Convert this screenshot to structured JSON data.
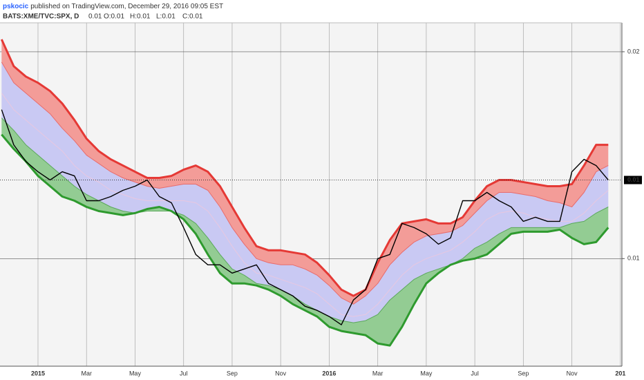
{
  "header": {
    "author": "pskocic",
    "published": "published on TradingView.com, December 29, 2016 09:05 EST",
    "symbol": "BATS:XME/TVC:SPX, D",
    "last": "0.01",
    "ohlc": [
      "O:0.01",
      "H:0.01",
      "L:0.01",
      "C:0.01"
    ]
  },
  "chart_data": {
    "type": "line",
    "categories": [
      null,
      null,
      null,
      "2015",
      null,
      null,
      null,
      "Mar",
      null,
      null,
      null,
      "May",
      null,
      null,
      null,
      "Jul",
      null,
      null,
      null,
      "Sep",
      null,
      null,
      null,
      "Nov",
      null,
      null,
      null,
      "2016",
      null,
      null,
      null,
      "Mar",
      null,
      null,
      null,
      "May",
      null,
      null,
      null,
      "Jul",
      null,
      null,
      null,
      "Sep",
      null,
      null,
      null,
      "Nov",
      null,
      null,
      null,
      "201"
    ],
    "series": [
      {
        "color": "#e53935",
        "values": [
          0.0206,
          0.0193,
          0.0188,
          0.0185,
          0.0181,
          0.0175,
          0.0167,
          0.0158,
          0.0152,
          0.0148,
          0.0145,
          0.0142,
          0.0139,
          0.0139,
          0.014,
          0.0143,
          0.0145,
          0.0142,
          0.0135,
          0.0125,
          0.0115,
          0.0106,
          0.0104,
          0.0104,
          0.0103,
          0.0102,
          0.0098,
          0.0092,
          0.0085,
          0.0082,
          0.0085,
          0.0098,
          0.0109,
          0.0117,
          0.0118,
          0.0119,
          0.0117,
          0.0117,
          0.012,
          0.0128,
          0.0135,
          0.0138,
          0.0138,
          0.0137,
          0.0136,
          0.0135,
          0.0135,
          0.0136,
          0.0145,
          0.0155,
          0.0155,
          null
        ]
      },
      {
        "color": "#e86b6b",
        "values": [
          0.0195,
          0.0185,
          0.018,
          0.0175,
          0.017,
          0.0163,
          0.0157,
          0.015,
          0.0146,
          0.0142,
          0.0139,
          0.0137,
          0.0135,
          0.0134,
          0.0135,
          0.0136,
          0.0136,
          0.0133,
          0.0125,
          0.0115,
          0.0107,
          0.01,
          0.0098,
          0.0097,
          0.0097,
          0.0095,
          0.0092,
          0.0087,
          0.0081,
          0.0078,
          0.0082,
          0.0088,
          0.0097,
          0.0103,
          0.0108,
          0.0111,
          0.0112,
          0.0113,
          0.0116,
          0.0122,
          0.0128,
          0.0132,
          0.0132,
          0.0131,
          0.013,
          0.0128,
          0.0127,
          0.0125,
          0.0132,
          0.0142,
          0.0145,
          null
        ]
      },
      {
        "color": "#e8c8e0",
        "values": [
          0.018,
          0.0172,
          0.0167,
          0.0162,
          0.0157,
          0.0152,
          0.0145,
          0.014,
          0.0137,
          0.0133,
          0.0131,
          0.0129,
          0.0128,
          0.0128,
          0.0128,
          0.0128,
          0.0127,
          0.0123,
          0.0115,
          0.0106,
          0.0098,
          0.0093,
          0.0092,
          0.009,
          0.0088,
          0.0086,
          0.0083,
          0.0078,
          0.0073,
          0.0072,
          0.0073,
          0.0078,
          0.0085,
          0.0092,
          0.0097,
          0.01,
          0.0102,
          0.0104,
          0.0108,
          0.0113,
          0.0119,
          0.0122,
          0.0123,
          0.0122,
          0.012,
          0.0119,
          0.0118,
          0.0118,
          0.0122,
          0.0128,
          0.0133,
          null
        ]
      },
      {
        "color": "#5aa85a",
        "values": [
          0.0168,
          0.0162,
          0.0155,
          0.015,
          0.0145,
          0.014,
          0.0135,
          0.0131,
          0.0128,
          0.0125,
          0.0123,
          0.0122,
          0.0123,
          0.0123,
          0.0123,
          0.0121,
          0.0117,
          0.011,
          0.0102,
          0.0095,
          0.0092,
          0.0088,
          0.0087,
          0.0085,
          0.0082,
          0.0078,
          0.0075,
          0.0072,
          0.007,
          0.0069,
          0.007,
          0.0073,
          0.008,
          0.0085,
          0.009,
          0.0093,
          0.0095,
          0.0097,
          0.01,
          0.0105,
          0.0108,
          0.0112,
          0.0115,
          0.0115,
          0.0115,
          0.0115,
          0.0115,
          0.0117,
          0.0118,
          0.0122,
          0.0125,
          null
        ]
      },
      {
        "color": "#2e9a2e",
        "values": [
          0.016,
          0.0153,
          0.0147,
          0.014,
          0.0135,
          0.013,
          0.0128,
          0.0125,
          0.0123,
          0.0122,
          0.0121,
          0.0122,
          0.0124,
          0.0125,
          0.0123,
          0.0119,
          0.0112,
          0.0102,
          0.0093,
          0.0088,
          0.0088,
          0.0087,
          0.0085,
          0.0082,
          0.0078,
          0.0075,
          0.0072,
          0.0067,
          0.0065,
          0.0064,
          0.0063,
          0.0059,
          0.0058,
          0.0067,
          0.0078,
          0.0088,
          0.0093,
          0.0097,
          0.0099,
          0.01,
          0.0102,
          0.0107,
          0.0112,
          0.0113,
          0.0113,
          0.0113,
          0.0114,
          0.011,
          0.0107,
          0.0108,
          0.0115,
          null
        ]
      },
      {
        "color": "#000000",
        "values": [
          0.0172,
          0.0155,
          0.0147,
          0.0142,
          0.0138,
          0.0142,
          0.014,
          0.0128,
          0.0128,
          0.013,
          0.0133,
          0.0135,
          0.0138,
          0.013,
          0.0127,
          0.0115,
          0.0102,
          0.0097,
          0.0097,
          0.0093,
          0.0095,
          0.0097,
          0.0088,
          0.0085,
          0.0082,
          0.0077,
          0.0075,
          0.0072,
          0.0068,
          0.008,
          0.0085,
          0.01,
          0.0102,
          0.0117,
          0.0115,
          0.0112,
          0.0107,
          0.011,
          0.0128,
          0.0128,
          0.0132,
          0.0128,
          0.0125,
          0.0118,
          0.012,
          0.0118,
          0.0118,
          0.0142,
          0.0148,
          0.0145,
          0.0138,
          null
        ]
      }
    ],
    "band_fills": [
      "#f39c98",
      "#c9c9f3",
      "#c9c9f3",
      "#93cc93"
    ],
    "ylim": [
      0.0048,
      0.0214
    ],
    "yticks": [
      0.02,
      0.01
    ],
    "grid": true,
    "price_line": {
      "value": 0.0138,
      "label": "0.01"
    }
  }
}
